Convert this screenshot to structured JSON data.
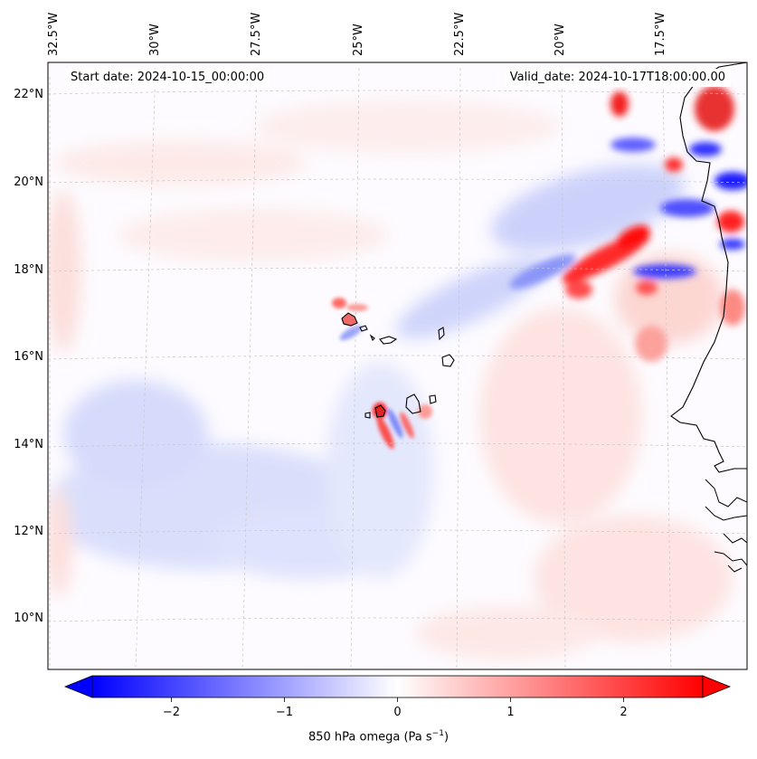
{
  "header": {
    "start_date": "Start date: 2024-10-15_00:00:00",
    "valid_date": "Valid_date: 2024-10-17T18:00:00.00"
  },
  "axes": {
    "lon_ticks": [
      "32.5°W",
      "30°W",
      "27.5°W",
      "25°W",
      "22.5°W",
      "20°W",
      "17.5°W"
    ],
    "lat_ticks": [
      "22°N",
      "20°N",
      "18°N",
      "16°N",
      "14°N",
      "12°N",
      "10°N"
    ]
  },
  "colorbar": {
    "ticks": [
      "−2",
      "−1",
      "0",
      "1",
      "2"
    ],
    "tick_values": [
      -2,
      -1,
      0,
      1,
      2
    ],
    "range": [
      -2.7,
      2.7
    ],
    "label_main": "850 hPa omega (Pa s",
    "label_sup": "−1",
    "label_end": ")",
    "colors": {
      "negative": "#0000ff",
      "zero": "#ffffff",
      "positive": "#ff0000"
    }
  }
}
